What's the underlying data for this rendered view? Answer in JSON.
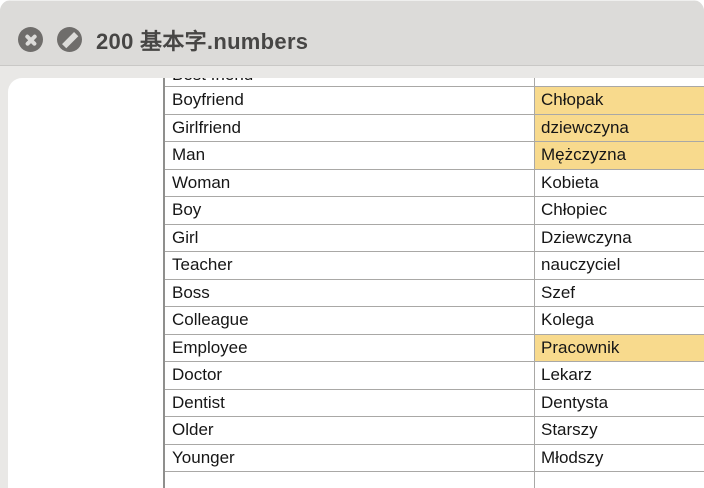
{
  "titlebar": {
    "title": "200 基本字.numbers",
    "close_icon": "close-icon",
    "blocked_icon": "blocked-icon"
  },
  "colors": {
    "highlight_yellow": "#f8da8d",
    "titlebar_bg": "#dcdbd9",
    "icon_circle": "#6f6d6b",
    "content_bg": "#e9e8e6",
    "grid_border": "#a9a8a6"
  },
  "table": {
    "partial_top_row": {
      "english": "Best friend",
      "polish": ""
    },
    "rows": [
      {
        "english": "Boyfriend",
        "polish": "Chłopak",
        "highlighted": true
      },
      {
        "english": "Girlfriend",
        "polish": "dziewczyna",
        "highlighted": true
      },
      {
        "english": "Man",
        "polish": "Mężczyzna",
        "highlighted": true
      },
      {
        "english": "Woman",
        "polish": "Kobieta",
        "highlighted": false
      },
      {
        "english": "Boy",
        "polish": "Chłopiec",
        "highlighted": false
      },
      {
        "english": "Girl",
        "polish": "Dziewczyna",
        "highlighted": false
      },
      {
        "english": "Teacher",
        "polish": "nauczyciel",
        "highlighted": false
      },
      {
        "english": "Boss",
        "polish": "Szef",
        "highlighted": false
      },
      {
        "english": "Colleague",
        "polish": "Kolega",
        "highlighted": false
      },
      {
        "english": "Employee",
        "polish": "Pracownik",
        "highlighted": true
      },
      {
        "english": "Doctor",
        "polish": "Lekarz",
        "highlighted": false
      },
      {
        "english": "Dentist",
        "polish": "Dentysta",
        "highlighted": false
      },
      {
        "english": "Older",
        "polish": "Starszy",
        "highlighted": false
      },
      {
        "english": "Younger",
        "polish": "Młodszy",
        "highlighted": false
      }
    ],
    "empty_bottom_row": {
      "english": "",
      "polish": ""
    }
  }
}
